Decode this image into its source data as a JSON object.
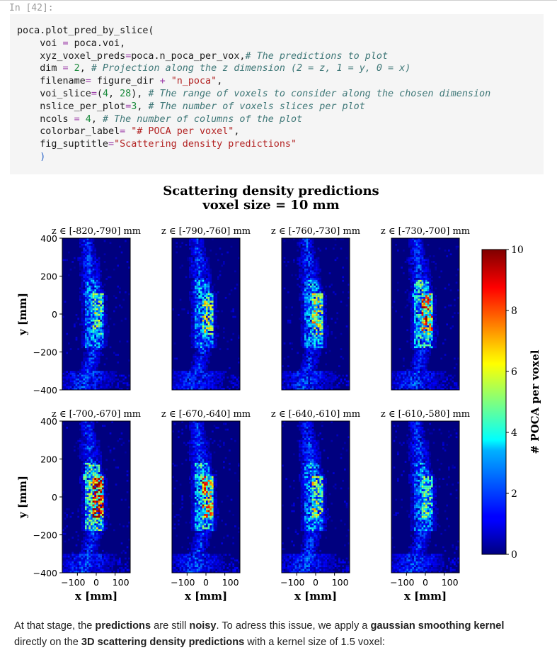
{
  "prompt": "In [42]:",
  "code_lines": [
    [
      {
        "t": "poca.plot_pred_by_slice("
      }
    ],
    [
      {
        "t": "    voi "
      },
      {
        "t": "=",
        "c": "op"
      },
      {
        "t": " poca.voi,"
      }
    ],
    [
      {
        "t": "    xyz_voxel_preds"
      },
      {
        "t": "=",
        "c": "op"
      },
      {
        "t": "poca.n_poca_per_vox,"
      },
      {
        "t": "# The predictions to plot",
        "c": "cm"
      }
    ],
    [
      {
        "t": "    dim "
      },
      {
        "t": "=",
        "c": "op"
      },
      {
        "t": " "
      },
      {
        "t": "2",
        "c": "num"
      },
      {
        "t": ", "
      },
      {
        "t": "# Projection along the z dimension (2 = z, 1 = y, 0 = x)",
        "c": "cm"
      }
    ],
    [
      {
        "t": "    filename"
      },
      {
        "t": "=",
        "c": "op"
      },
      {
        "t": " figure_dir "
      },
      {
        "t": "+",
        "c": "op"
      },
      {
        "t": " "
      },
      {
        "t": "\"n_poca\"",
        "c": "str"
      },
      {
        "t": ","
      }
    ],
    [
      {
        "t": "    voi_slice"
      },
      {
        "t": "=",
        "c": "op"
      },
      {
        "t": "("
      },
      {
        "t": "4",
        "c": "num"
      },
      {
        "t": ", "
      },
      {
        "t": "28",
        "c": "num"
      },
      {
        "t": "), "
      },
      {
        "t": "# The range of voxels to consider along the chosen dimension",
        "c": "cm"
      }
    ],
    [
      {
        "t": "    nslice_per_plot"
      },
      {
        "t": "=",
        "c": "op"
      },
      {
        "t": "3",
        "c": "num"
      },
      {
        "t": ", "
      },
      {
        "t": "# The number of voxels slices per plot",
        "c": "cm"
      }
    ],
    [
      {
        "t": "    ncols "
      },
      {
        "t": "=",
        "c": "op"
      },
      {
        "t": " "
      },
      {
        "t": "4",
        "c": "num"
      },
      {
        "t": ", "
      },
      {
        "t": "# The number of columns of the plot",
        "c": "cm"
      }
    ],
    [
      {
        "t": "    colorbar_label"
      },
      {
        "t": "=",
        "c": "op"
      },
      {
        "t": " "
      },
      {
        "t": "\"# POCA per voxel\"",
        "c": "str"
      },
      {
        "t": ","
      }
    ],
    [
      {
        "t": "    fig_suptitle"
      },
      {
        "t": "=",
        "c": "op"
      },
      {
        "t": "\"Scattering density predictions\"",
        "c": "str"
      }
    ],
    [
      {
        "t": "    )",
        "c": "paren"
      }
    ]
  ],
  "figure": {
    "suptitle_1": "Scattering density predictions",
    "suptitle_2": "voxel size = 10 mm",
    "panel_titles": [
      "z ∈ [-820,-790] mm",
      "z ∈ [-790,-760] mm",
      "z ∈ [-760,-730] mm",
      "z ∈ [-730,-700] mm",
      "z ∈ [-700,-670] mm",
      "z ∈ [-670,-640] mm",
      "z ∈ [-640,-610] mm",
      "z ∈ [-610,-580] mm"
    ],
    "y_label": "y [mm]",
    "x_label": "x [mm]",
    "y_ticks": [
      "400",
      "200",
      "0",
      "−200",
      "−400"
    ],
    "x_ticks": [
      "−100",
      "0",
      "100"
    ],
    "colorbar_label": "# POCA per voxel",
    "colorbar_ticks": [
      "10",
      "8",
      "6",
      "4",
      "2",
      "0"
    ],
    "colormap": "jet"
  },
  "chart_data": {
    "type": "heatmap",
    "title": "Scattering density predictions",
    "subtitle": "voxel size = 10 mm",
    "xlabel": "x [mm]",
    "ylabel": "y [mm]",
    "xticks": [
      -100,
      0,
      100
    ],
    "ylim": [
      -400,
      400
    ],
    "yticks": [
      -400,
      -200,
      0,
      200,
      400
    ],
    "colorbar": {
      "label": "# POCA per voxel",
      "range": [
        0,
        10
      ],
      "ticks": [
        0,
        2,
        4,
        6,
        8,
        10
      ],
      "colormap": "jet"
    },
    "panels": [
      {
        "title": "z ∈ [-820,-790] mm",
        "approx_max_poca": 4
      },
      {
        "title": "z ∈ [-790,-760] mm",
        "approx_max_poca": 4.5
      },
      {
        "title": "z ∈ [-760,-730] mm",
        "approx_max_poca": 5
      },
      {
        "title": "z ∈ [-730,-700] mm",
        "approx_max_poca": 7.5
      },
      {
        "title": "z ∈ [-700,-670] mm",
        "approx_max_poca": 9.5
      },
      {
        "title": "z ∈ [-670,-640] mm",
        "approx_max_poca": 7
      },
      {
        "title": "z ∈ [-640,-610] mm",
        "approx_max_poca": 4.5
      },
      {
        "title": "z ∈ [-610,-580] mm",
        "approx_max_poca": 3.5
      }
    ]
  },
  "markdown": [
    {
      "t": "At that stage, the "
    },
    {
      "t": "predictions",
      "b": true
    },
    {
      "t": " are still "
    },
    {
      "t": "noisy",
      "b": true
    },
    {
      "t": ". To adress this issue, we apply a "
    },
    {
      "t": "gaussian smoothing kernel",
      "b": true
    },
    {
      "t": " directly on the "
    },
    {
      "t": "3D scattering density predictions",
      "b": true
    },
    {
      "t": " with a kernel size of 1.5 voxel:"
    }
  ]
}
